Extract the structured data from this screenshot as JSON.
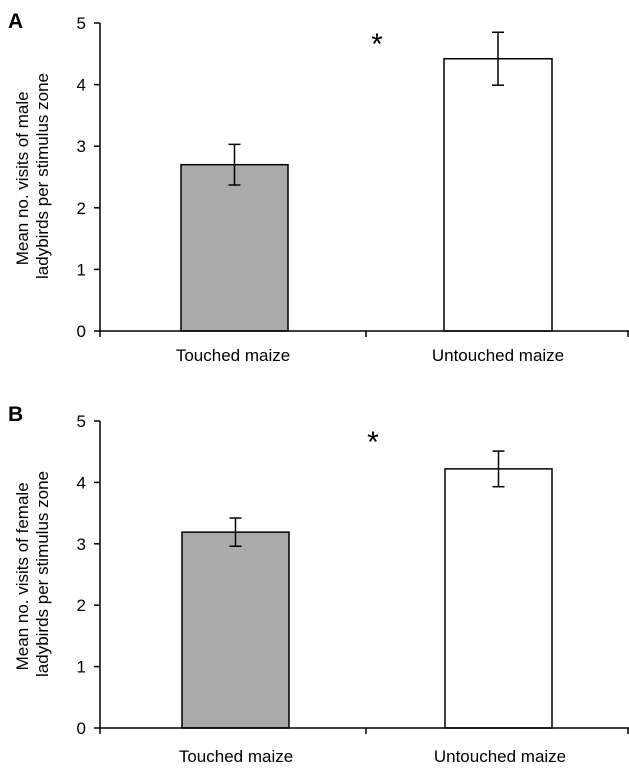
{
  "chart_data": [
    {
      "type": "bar",
      "panel_label": "A",
      "categories": [
        "Touched maize",
        "Untouched maize"
      ],
      "values": [
        2.7,
        4.42
      ],
      "errors": [
        0.33,
        0.43
      ],
      "bar_colors": [
        "#aaaaaa",
        "#ffffff"
      ],
      "ylabel_lines": [
        "Mean no. visits of male",
        "ladybirds per stimulus zone"
      ],
      "ylim": [
        0,
        5
      ],
      "yticks": [
        "0",
        "1",
        "2",
        "3",
        "4",
        "5"
      ],
      "significance": "*"
    },
    {
      "type": "bar",
      "panel_label": "B",
      "categories": [
        "Touched maize",
        "Untouched maize"
      ],
      "values": [
        3.19,
        4.22
      ],
      "errors": [
        0.23,
        0.29
      ],
      "bar_colors": [
        "#aaaaaa",
        "#ffffff"
      ],
      "ylabel_lines": [
        "Mean no. visits of female",
        "ladybirds per stimulus zone"
      ],
      "ylim": [
        0,
        5
      ],
      "yticks": [
        "0",
        "1",
        "2",
        "3",
        "4",
        "5"
      ],
      "significance": "*"
    }
  ]
}
